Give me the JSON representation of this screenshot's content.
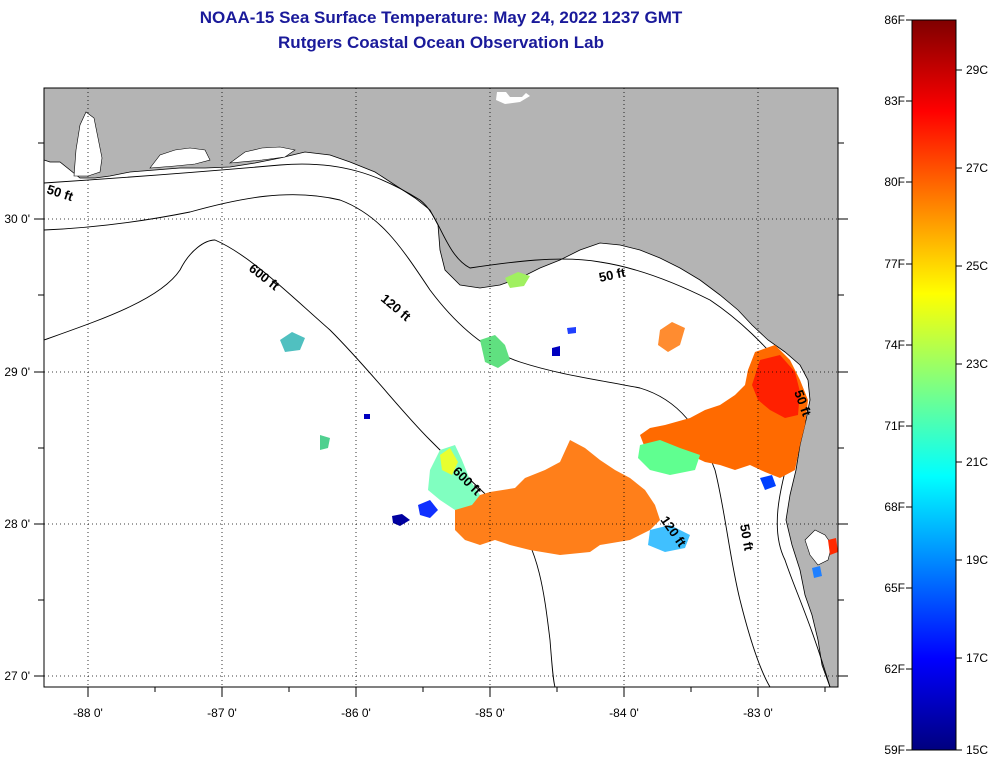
{
  "title": "NOAA-15 Sea Surface Temperature:  May 24, 2022 1237 GMT",
  "subtitle": "Rutgers Coastal Ocean Observation Lab",
  "longitude_ticks": [
    "-88 0'",
    "-87 0'",
    "-86 0'",
    "-85 0'",
    "-84 0'",
    "-83 0'"
  ],
  "latitude_ticks": [
    "30 0'",
    "29 0'",
    "28 0'",
    "27 0'"
  ],
  "contour_labels": [
    "50 ft",
    "600 ft",
    "120 ft",
    "50 ft",
    "600 ft",
    "120 ft",
    "50 ft",
    "50 ft"
  ],
  "colorbar": {
    "fahrenheit_labels": [
      "86F",
      "83F",
      "80F",
      "77F",
      "74F",
      "71F",
      "68F",
      "65F",
      "62F",
      "59F"
    ],
    "celsius_labels": [
      "29C",
      "27C",
      "25C",
      "23C",
      "21C",
      "19C",
      "17C",
      "15C"
    ],
    "colors": [
      "#00007f",
      "#0000ff",
      "#0080ff",
      "#00ffff",
      "#80ff80",
      "#ffff00",
      "#ff8000",
      "#ff0000",
      "#7f0000"
    ]
  },
  "colors": {
    "land": "#b4b4b4",
    "water": "#ffffff",
    "title": "#1a1a9a"
  }
}
